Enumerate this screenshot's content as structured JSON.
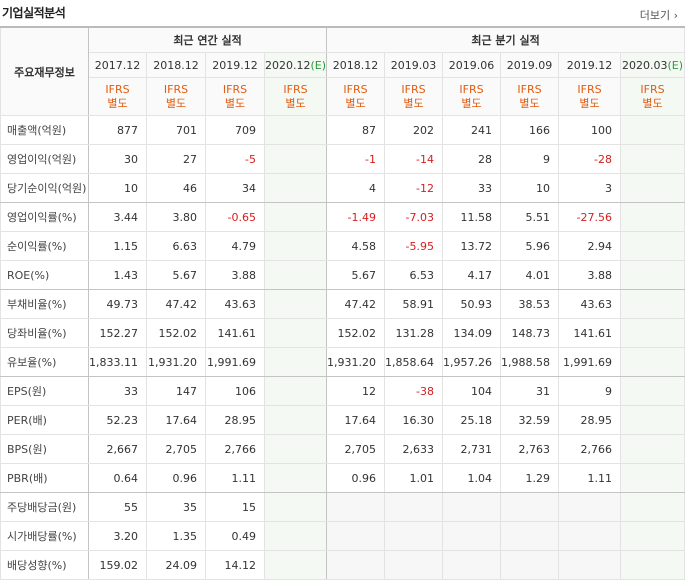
{
  "header": {
    "title": "기업실적분석",
    "more": "더보기"
  },
  "table": {
    "corner": "주요재무정보",
    "groups": [
      {
        "label": "최근 연간 실적"
      },
      {
        "label": "최근 분기 실적"
      }
    ],
    "columns": [
      {
        "period": "2017.12",
        "standard": "IFRS",
        "basis": "별도"
      },
      {
        "period": "2018.12",
        "standard": "IFRS",
        "basis": "별도"
      },
      {
        "period": "2019.12",
        "standard": "IFRS",
        "basis": "별도"
      },
      {
        "period": "2020.12",
        "mark": "(E)",
        "standard": "IFRS",
        "basis": "별도"
      },
      {
        "period": "2018.12",
        "standard": "IFRS",
        "basis": "별도"
      },
      {
        "period": "2019.03",
        "standard": "IFRS",
        "basis": "별도"
      },
      {
        "period": "2019.06",
        "standard": "IFRS",
        "basis": "별도"
      },
      {
        "period": "2019.09",
        "standard": "IFRS",
        "basis": "별도"
      },
      {
        "period": "2019.12",
        "standard": "IFRS",
        "basis": "별도"
      },
      {
        "period": "2020.03",
        "mark": "(E)",
        "standard": "IFRS",
        "basis": "별도"
      }
    ],
    "rows": [
      {
        "label": "매출액(억원)",
        "values": [
          "877",
          "701",
          "709",
          null,
          "87",
          "202",
          "241",
          "166",
          "100",
          null
        ]
      },
      {
        "label": "영업이익(억원)",
        "values": [
          "30",
          "27",
          "-5",
          null,
          "-1",
          "-14",
          "28",
          "9",
          "-28",
          null
        ]
      },
      {
        "label": "당기순이익(억원)",
        "values": [
          "10",
          "46",
          "34",
          null,
          "4",
          "-12",
          "33",
          "10",
          "3",
          null
        ]
      },
      {
        "label": "영업이익률(%)",
        "values": [
          "3.44",
          "3.80",
          "-0.65",
          null,
          "-1.49",
          "-7.03",
          "11.58",
          "5.51",
          "-27.56",
          null
        ]
      },
      {
        "label": "순이익률(%)",
        "values": [
          "1.15",
          "6.63",
          "4.79",
          null,
          "4.58",
          "-5.95",
          "13.72",
          "5.96",
          "2.94",
          null
        ]
      },
      {
        "label": "ROE(%)",
        "values": [
          "1.43",
          "5.67",
          "3.88",
          null,
          "5.67",
          "6.53",
          "4.17",
          "4.01",
          "3.88",
          null
        ]
      },
      {
        "label": "부채비율(%)",
        "values": [
          "49.73",
          "47.42",
          "43.63",
          null,
          "47.42",
          "58.91",
          "50.93",
          "38.53",
          "43.63",
          null
        ]
      },
      {
        "label": "당좌비율(%)",
        "values": [
          "152.27",
          "152.02",
          "141.61",
          null,
          "152.02",
          "131.28",
          "134.09",
          "148.73",
          "141.61",
          null
        ]
      },
      {
        "label": "유보율(%)",
        "values": [
          "1,833.11",
          "1,931.20",
          "1,991.69",
          null,
          "1,931.20",
          "1,858.64",
          "1,957.26",
          "1,988.58",
          "1,991.69",
          null
        ]
      },
      {
        "label": "EPS(원)",
        "values": [
          "33",
          "147",
          "106",
          null,
          "12",
          "-38",
          "104",
          "31",
          "9",
          null
        ]
      },
      {
        "label": "PER(배)",
        "values": [
          "52.23",
          "17.64",
          "28.95",
          null,
          "17.64",
          "16.30",
          "25.18",
          "32.59",
          "28.95",
          null
        ]
      },
      {
        "label": "BPS(원)",
        "values": [
          "2,667",
          "2,705",
          "2,766",
          null,
          "2,705",
          "2,633",
          "2,731",
          "2,763",
          "2,766",
          null
        ]
      },
      {
        "label": "PBR(배)",
        "values": [
          "0.64",
          "0.96",
          "1.11",
          null,
          "0.96",
          "1.01",
          "1.04",
          "1.29",
          "1.11",
          null
        ]
      },
      {
        "label": "주당배당금(원)",
        "values": [
          "55",
          "35",
          "15",
          null,
          null,
          null,
          null,
          null,
          null,
          null
        ]
      },
      {
        "label": "시가배당률(%)",
        "values": [
          "3.20",
          "1.35",
          "0.49",
          null,
          null,
          null,
          null,
          null,
          null,
          null
        ]
      },
      {
        "label": "배당성향(%)",
        "values": [
          "159.02",
          "24.09",
          "14.12",
          null,
          null,
          null,
          null,
          null,
          null,
          null
        ]
      }
    ]
  }
}
